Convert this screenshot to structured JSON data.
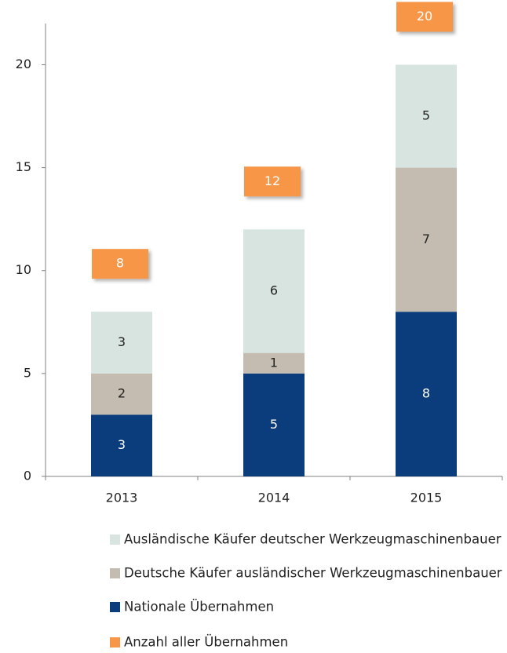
{
  "chart_data": {
    "type": "stacked_bar",
    "categories": [
      "2013",
      "2014",
      "2015"
    ],
    "series": [
      {
        "name": "Nationale Übernahmen",
        "color": "#0b3d7c",
        "values": [
          3,
          5,
          8
        ]
      },
      {
        "name": "Deutsche Käufer ausländischer Werkzeugmaschinenbauer",
        "color": "#c4bcb1",
        "values": [
          2,
          1,
          7
        ]
      },
      {
        "name": "Ausländische Käufer deutscher Werkzeugmaschinenbauer",
        "color": "#d8e4e0",
        "values": [
          3,
          6,
          5
        ]
      }
    ],
    "totals": {
      "name": "Anzahl aller Übernahmen",
      "color": "#f79646",
      "values": [
        8,
        12,
        20
      ]
    },
    "ylim": [
      0,
      22
    ],
    "yticks": [
      0,
      5,
      10,
      15,
      20
    ],
    "grid": false
  }
}
